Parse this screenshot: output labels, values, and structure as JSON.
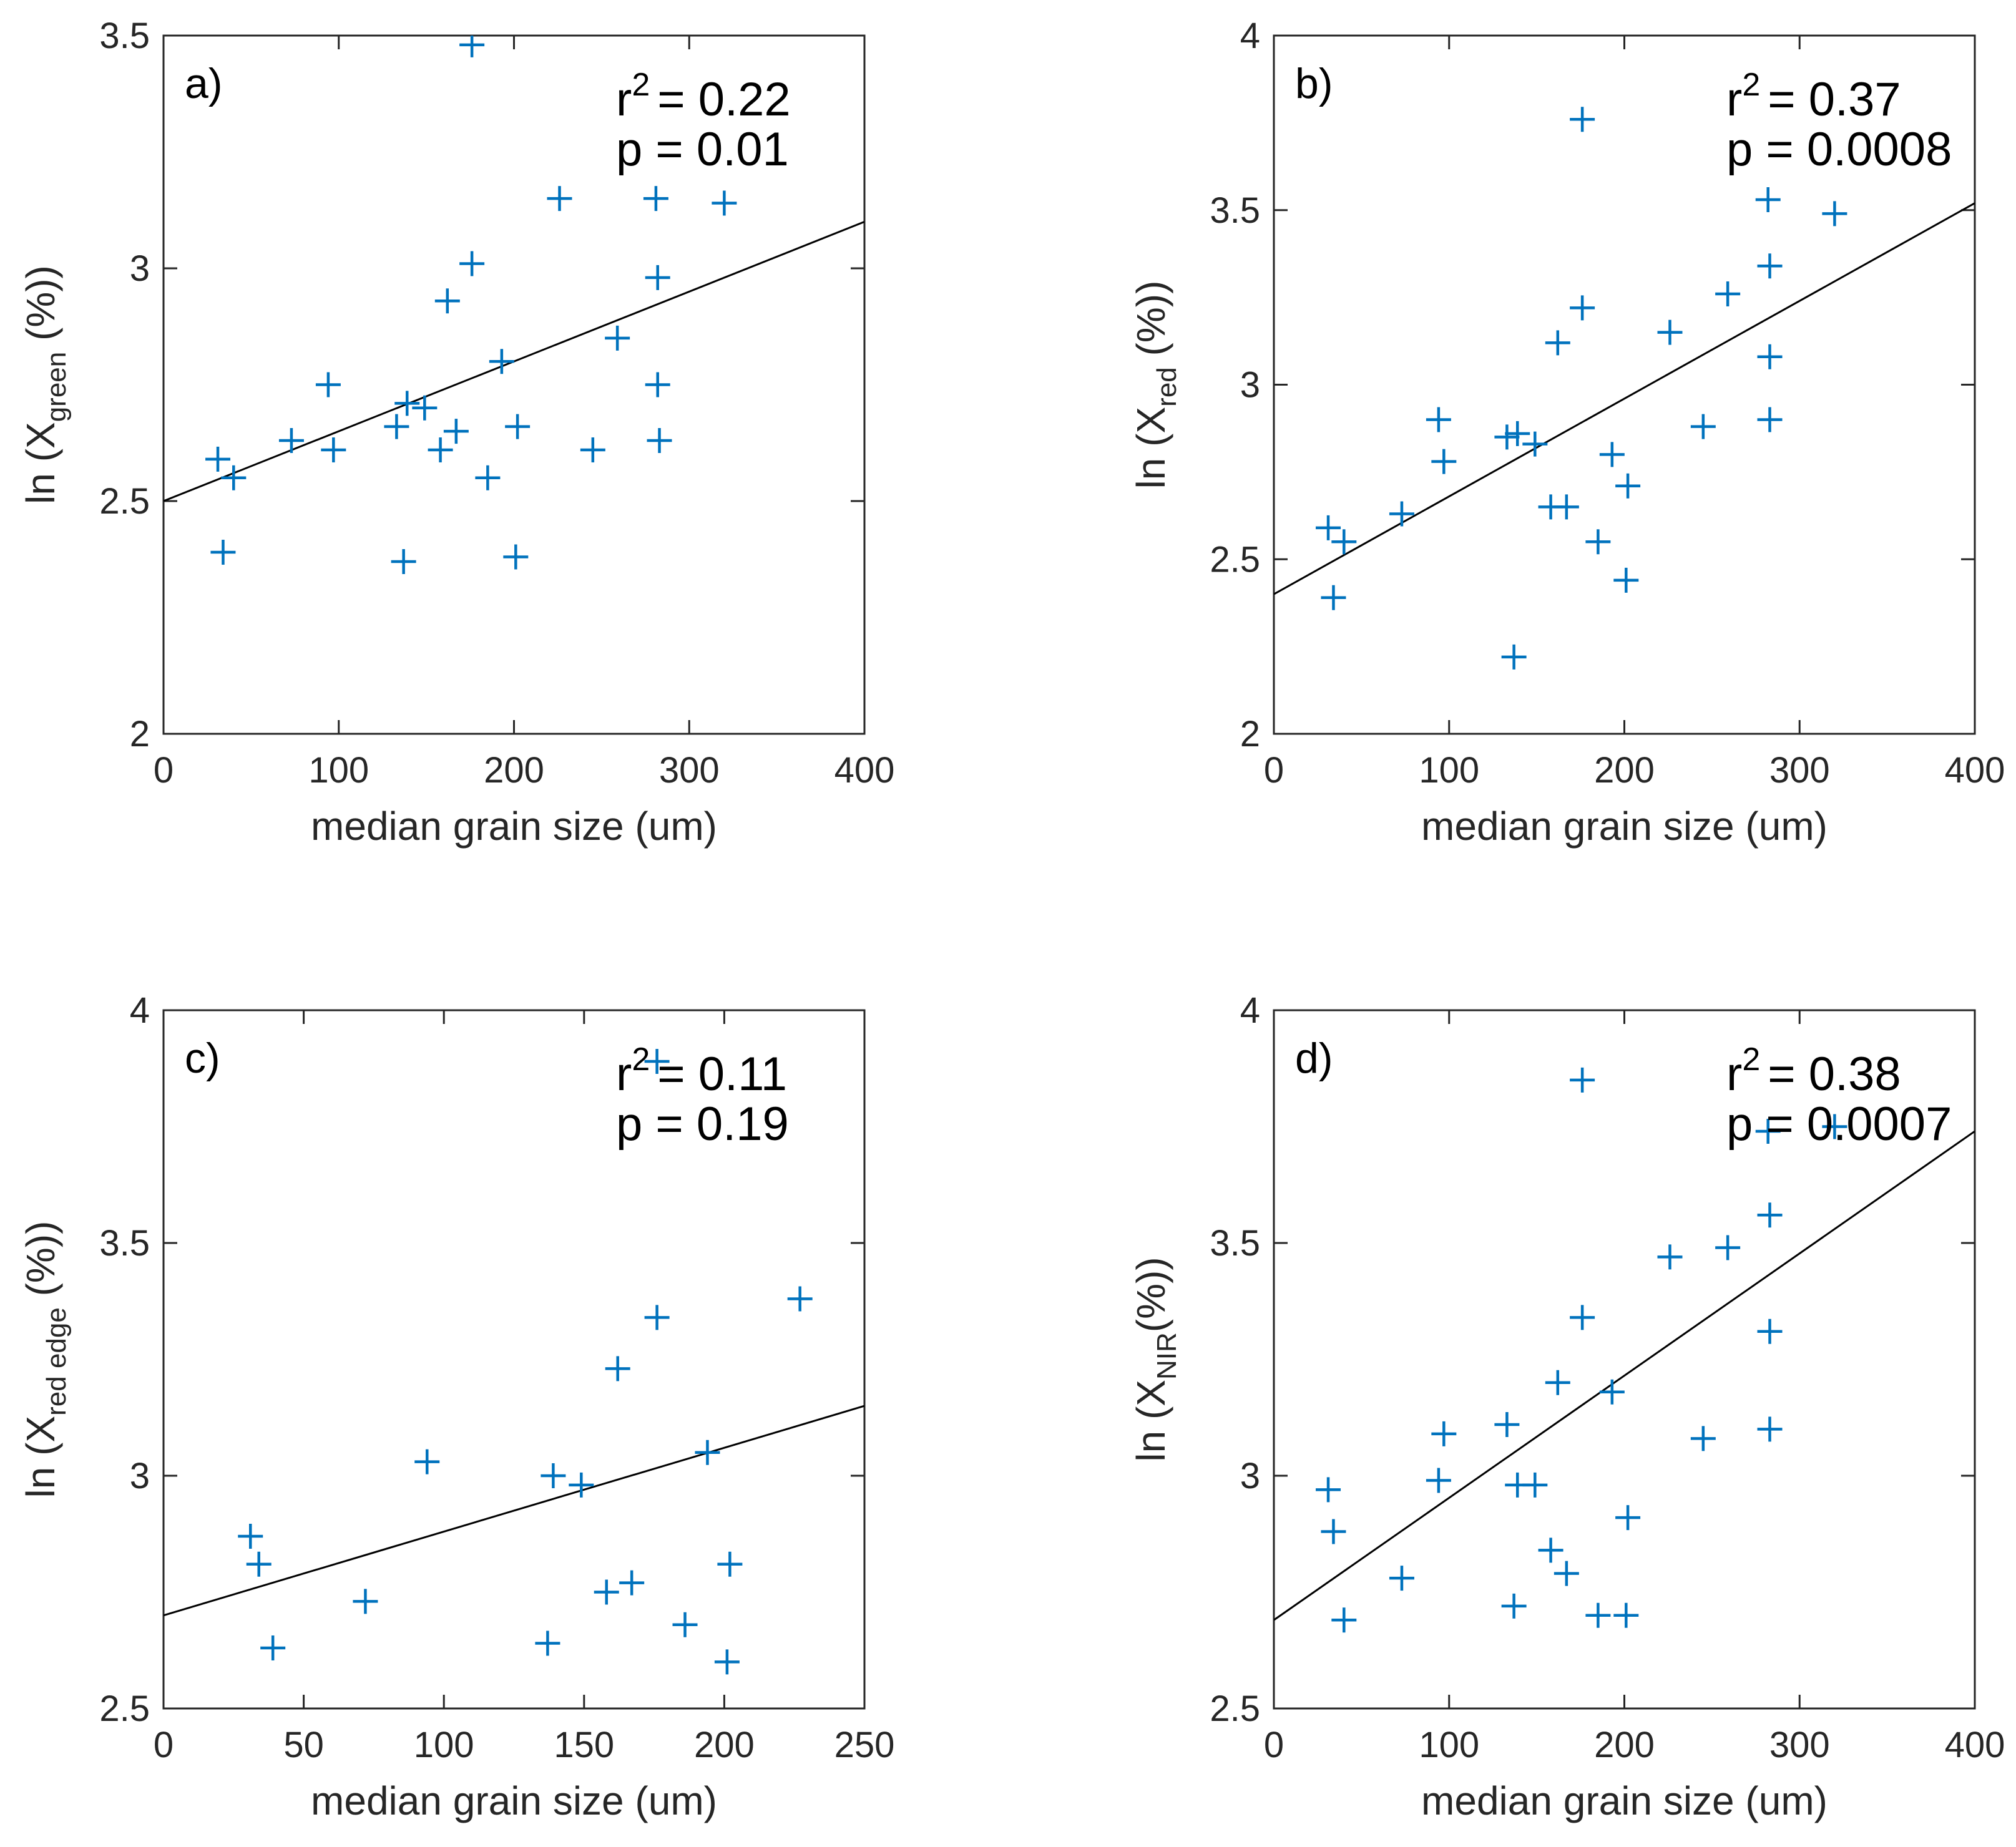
{
  "marker_color": "#0072BD",
  "line_color": "#000000",
  "chart_data": [
    {
      "type": "scatter",
      "panel_label": "a)",
      "r2_text": "r² = 0.22",
      "r2_prefix": "r",
      "r2_exp": "2",
      "r2_value": "= 0.22",
      "p_text": "p = 0.01",
      "xlabel": "median grain size (um)",
      "ylabel_prefix": "ln (X",
      "ylabel_sub": "green",
      "ylabel_suffix": " (%))",
      "xlim": [
        0,
        400
      ],
      "ylim": [
        2,
        3.5
      ],
      "xticks": [
        0,
        100,
        200,
        300,
        400
      ],
      "yticks": [
        2,
        2.5,
        3,
        3.5
      ],
      "xticklabels": [
        "0",
        "100",
        "200",
        "300",
        "400"
      ],
      "yticklabels": [
        "2",
        "2.5",
        "3",
        "3.5"
      ],
      "fit": {
        "x": [
          0,
          400
        ],
        "y": [
          2.5,
          3.1
        ]
      },
      "points": {
        "x": [
          31,
          34,
          40,
          73,
          94,
          97,
          133,
          139,
          149,
          158,
          167,
          176,
          185,
          193,
          202,
          137,
          201,
          162,
          226,
          245,
          259,
          281,
          282,
          282,
          283,
          320,
          176
        ],
        "y": [
          2.59,
          2.39,
          2.55,
          2.63,
          2.75,
          2.61,
          2.66,
          2.71,
          2.7,
          2.61,
          2.65,
          3.01,
          2.55,
          2.8,
          2.66,
          2.37,
          2.38,
          2.93,
          3.15,
          2.61,
          2.85,
          3.15,
          2.98,
          2.75,
          2.63,
          3.14,
          3.48
        ]
      }
    },
    {
      "type": "scatter",
      "panel_label": "b)",
      "r2_text": "r² = 0.37",
      "r2_prefix": "r",
      "r2_exp": "2",
      "r2_value": "= 0.37",
      "p_text": "p = 0.0008",
      "xlabel": "median grain size (um)",
      "ylabel_prefix": "ln (X",
      "ylabel_sub": "red",
      "ylabel_suffix": " (%))",
      "xlim": [
        0,
        400
      ],
      "ylim": [
        2,
        4
      ],
      "xticks": [
        0,
        100,
        200,
        300,
        400
      ],
      "yticks": [
        2,
        2.5,
        3,
        3.5,
        4
      ],
      "xticklabels": [
        "0",
        "100",
        "200",
        "300",
        "400"
      ],
      "yticklabels": [
        "2",
        "2.5",
        "3",
        "3.5",
        "4"
      ],
      "fit": {
        "x": [
          0,
          400
        ],
        "y": [
          2.4,
          3.52
        ]
      },
      "points": {
        "x": [
          31,
          34,
          40,
          73,
          94,
          97,
          133,
          139,
          149,
          158,
          167,
          176,
          185,
          193,
          202,
          137,
          201,
          162,
          226,
          245,
          259,
          282,
          283,
          283,
          283,
          320,
          176
        ],
        "y": [
          2.59,
          2.39,
          2.55,
          2.63,
          2.9,
          2.78,
          2.85,
          2.86,
          2.83,
          2.65,
          2.65,
          3.22,
          2.55,
          2.8,
          2.71,
          2.22,
          2.44,
          3.12,
          3.15,
          2.88,
          3.26,
          3.53,
          3.34,
          3.08,
          2.9,
          3.49,
          3.76
        ]
      }
    },
    {
      "type": "scatter",
      "panel_label": "c)",
      "r2_text": "r² = 0.11",
      "r2_prefix": "r",
      "r2_exp": "2",
      "r2_value": "= 0.11",
      "p_text": "p = 0.19",
      "xlabel": "median grain size (um)",
      "ylabel_prefix": "ln (X",
      "ylabel_sub": "red edge",
      "ylabel_suffix": " (%))",
      "xlim": [
        0,
        250
      ],
      "ylim": [
        2.5,
        4
      ],
      "xticks": [
        0,
        50,
        100,
        150,
        200,
        250
      ],
      "yticks": [
        2.5,
        3,
        3.5,
        4
      ],
      "xticklabels": [
        "0",
        "50",
        "100",
        "150",
        "200",
        "250"
      ],
      "yticklabels": [
        "2.5",
        "3",
        "3.5",
        "4"
      ],
      "fit": {
        "x": [
          0,
          250
        ],
        "y": [
          2.7,
          3.15
        ]
      },
      "points": {
        "x": [
          31,
          34,
          39,
          72,
          94,
          139,
          149,
          158,
          167,
          176,
          186,
          194,
          202,
          137,
          201,
          162,
          227,
          176
        ],
        "y": [
          2.87,
          2.81,
          2.63,
          2.73,
          3.03,
          3.0,
          2.98,
          2.75,
          2.77,
          3.34,
          2.68,
          3.05,
          2.81,
          2.64,
          2.6,
          3.23,
          3.38,
          3.89
        ]
      }
    },
    {
      "type": "scatter",
      "panel_label": "d)",
      "r2_text": "r² = 0.38",
      "r2_prefix": "r",
      "r2_exp": "2",
      "r2_value": "= 0.38",
      "p_text": "p = 0.0007",
      "xlabel": "median grain size (um)",
      "ylabel_prefix": "ln (X",
      "ylabel_sub": "NIR",
      "ylabel_suffix": "(%))",
      "xlim": [
        0,
        400
      ],
      "ylim": [
        2.5,
        4
      ],
      "xticks": [
        0,
        100,
        200,
        300,
        400
      ],
      "yticks": [
        2.5,
        3,
        3.5,
        4
      ],
      "xticklabels": [
        "0",
        "100",
        "200",
        "300",
        "400"
      ],
      "yticklabels": [
        "2.5",
        "3",
        "3.5",
        "4"
      ],
      "fit": {
        "x": [
          0,
          400
        ],
        "y": [
          2.69,
          3.74
        ]
      },
      "points": {
        "x": [
          31,
          34,
          40,
          73,
          94,
          97,
          133,
          139,
          149,
          158,
          167,
          176,
          185,
          193,
          202,
          137,
          201,
          162,
          226,
          245,
          259,
          282,
          283,
          283,
          283,
          320,
          176
        ],
        "y": [
          2.97,
          2.88,
          2.69,
          2.78,
          2.99,
          3.09,
          3.11,
          2.98,
          2.98,
          2.84,
          2.79,
          3.34,
          2.7,
          3.18,
          2.91,
          2.72,
          2.7,
          3.2,
          3.47,
          3.08,
          3.49,
          3.74,
          3.56,
          3.31,
          3.1,
          3.75,
          3.85
        ]
      }
    }
  ]
}
